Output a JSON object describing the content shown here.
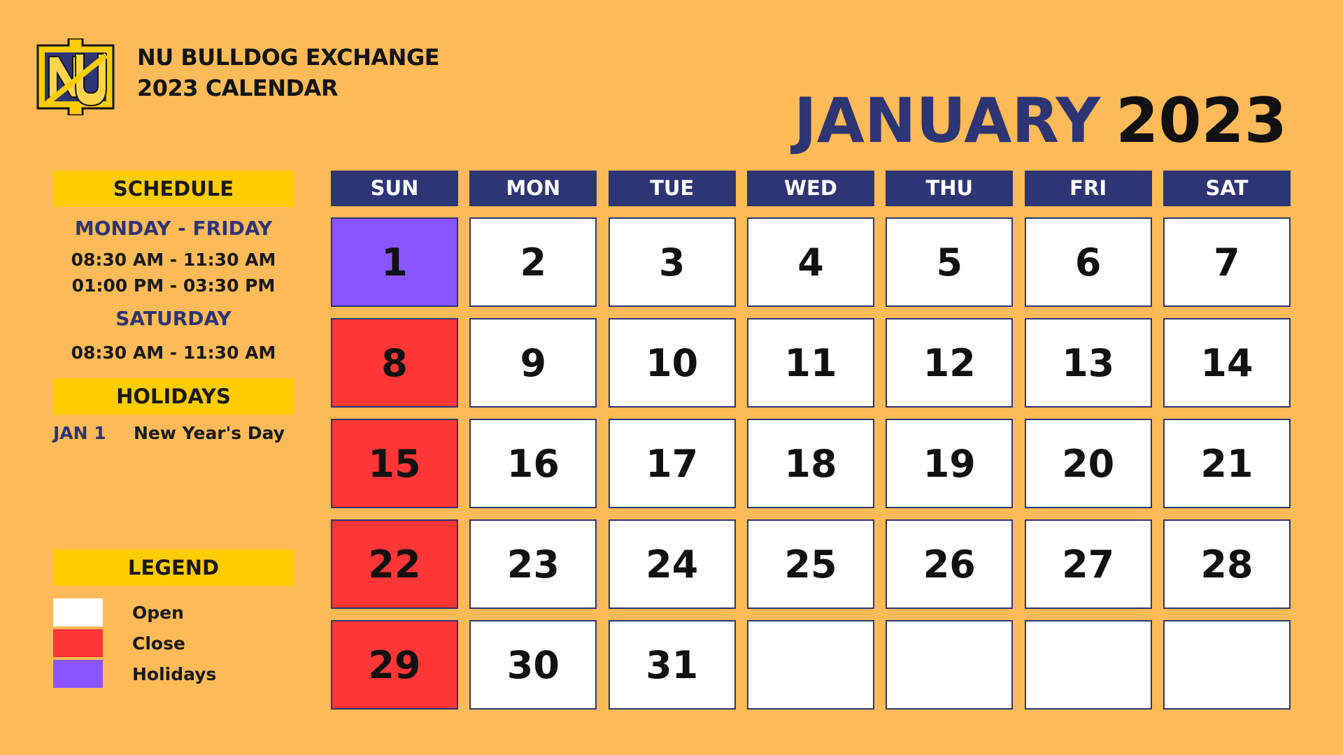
{
  "header": {
    "brand_line1": "NU BULLDOG EXCHANGE",
    "brand_line2": "2023 CALENDAR",
    "month": "JANUARY",
    "year": "2023",
    "logo_icon": "nu-monogram-logo"
  },
  "colors": {
    "background": "#fdba57",
    "navy": "#2e3575",
    "yellow": "#ffcc00",
    "open": "#ffffff",
    "close": "#ff3636",
    "holiday": "#8a55ff"
  },
  "schedule": {
    "title": "SCHEDULE",
    "weekday_label": "MONDAY - FRIDAY",
    "weekday_time1": "08:30 AM - 11:30 AM",
    "weekday_time2": "01:00 PM - 03:30 PM",
    "saturday_label": "SATURDAY",
    "saturday_time": "08:30 AM - 11:30 AM"
  },
  "holidays": {
    "title": "HOLIDAYS",
    "items": [
      {
        "date": "JAN 1",
        "name": "New Year's Day"
      }
    ]
  },
  "legend": {
    "title": "LEGEND",
    "items": [
      {
        "label": "Open",
        "status": "open"
      },
      {
        "label": "Close",
        "status": "close"
      },
      {
        "label": "Holidays",
        "status": "holiday"
      }
    ]
  },
  "calendar": {
    "days": [
      "SUN",
      "MON",
      "TUE",
      "WED",
      "THU",
      "FRI",
      "SAT"
    ],
    "weeks": [
      [
        {
          "day": "1",
          "status": "holiday"
        },
        {
          "day": "2",
          "status": "open"
        },
        {
          "day": "3",
          "status": "open"
        },
        {
          "day": "4",
          "status": "open"
        },
        {
          "day": "5",
          "status": "open"
        },
        {
          "day": "6",
          "status": "open"
        },
        {
          "day": "7",
          "status": "open"
        }
      ],
      [
        {
          "day": "8",
          "status": "close"
        },
        {
          "day": "9",
          "status": "open"
        },
        {
          "day": "10",
          "status": "open"
        },
        {
          "day": "11",
          "status": "open"
        },
        {
          "day": "12",
          "status": "open"
        },
        {
          "day": "13",
          "status": "open"
        },
        {
          "day": "14",
          "status": "open"
        }
      ],
      [
        {
          "day": "15",
          "status": "close"
        },
        {
          "day": "16",
          "status": "open"
        },
        {
          "day": "17",
          "status": "open"
        },
        {
          "day": "18",
          "status": "open"
        },
        {
          "day": "19",
          "status": "open"
        },
        {
          "day": "20",
          "status": "open"
        },
        {
          "day": "21",
          "status": "open"
        }
      ],
      [
        {
          "day": "22",
          "status": "close"
        },
        {
          "day": "23",
          "status": "open"
        },
        {
          "day": "24",
          "status": "open"
        },
        {
          "day": "25",
          "status": "open"
        },
        {
          "day": "26",
          "status": "open"
        },
        {
          "day": "27",
          "status": "open"
        },
        {
          "day": "28",
          "status": "open"
        }
      ],
      [
        {
          "day": "29",
          "status": "close"
        },
        {
          "day": "30",
          "status": "open"
        },
        {
          "day": "31",
          "status": "open"
        },
        {
          "day": "",
          "status": "open"
        },
        {
          "day": "",
          "status": "open"
        },
        {
          "day": "",
          "status": "open"
        },
        {
          "day": "",
          "status": "open"
        }
      ]
    ]
  }
}
